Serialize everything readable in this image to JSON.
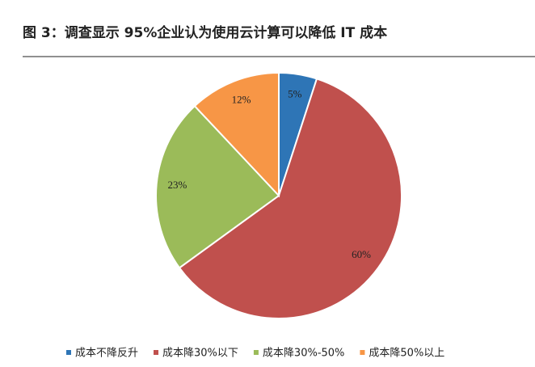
{
  "chart_data": {
    "type": "pie",
    "title": "图 3：调查显示 95%企业认为使用云计算可以降低 IT 成本",
    "categories": [
      "成本不降反升",
      "成本降30%以下",
      "成本降30%-50%",
      "成本降50%以上"
    ],
    "values": [
      5,
      60,
      23,
      12
    ],
    "value_labels": [
      "5%",
      "60%",
      "23%",
      "12%"
    ],
    "colors": [
      "#2e75b6",
      "#c0504d",
      "#9bbb59",
      "#f79646"
    ],
    "legend": "bottom"
  }
}
